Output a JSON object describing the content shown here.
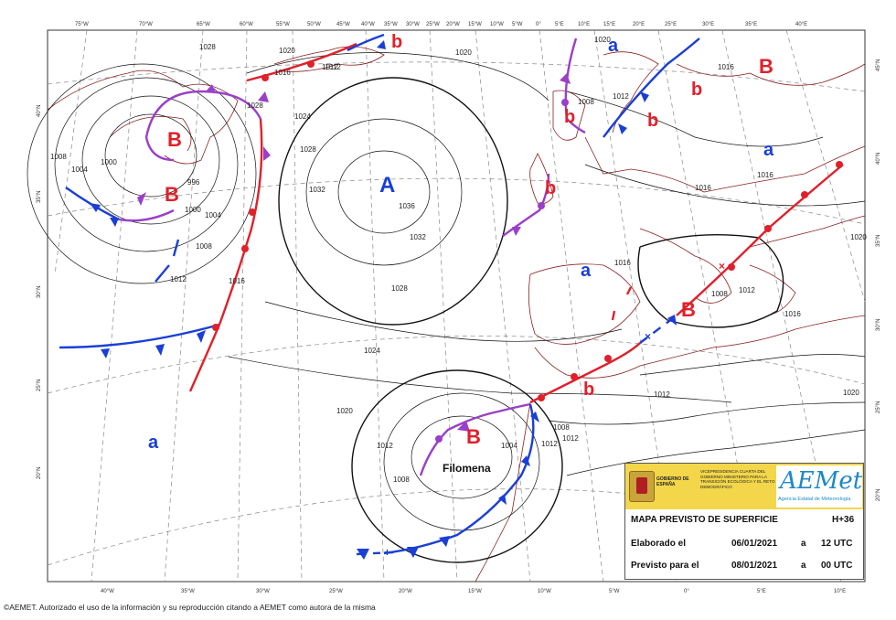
{
  "map": {
    "pressure_centers": [
      {
        "kind": "high",
        "label": "A",
        "name": ""
      },
      {
        "kind": "low",
        "label": "B",
        "name": ""
      },
      {
        "kind": "low",
        "label": "B",
        "name": ""
      },
      {
        "kind": "low",
        "label": "B",
        "name": ""
      },
      {
        "kind": "low",
        "label": "B",
        "name": ""
      },
      {
        "kind": "low",
        "label": "B",
        "name": "Filomena"
      },
      {
        "kind": "low_secondary",
        "label": "b"
      },
      {
        "kind": "low_secondary",
        "label": "b"
      },
      {
        "kind": "low_secondary",
        "label": "b"
      },
      {
        "kind": "low_secondary",
        "label": "b"
      },
      {
        "kind": "low_secondary",
        "label": "b"
      },
      {
        "kind": "low_secondary",
        "label": "b"
      },
      {
        "kind": "high_secondary",
        "label": "a"
      },
      {
        "kind": "high_secondary",
        "label": "a"
      },
      {
        "kind": "high_secondary",
        "label": "a"
      },
      {
        "kind": "high_secondary",
        "label": "a"
      }
    ],
    "isobar_labels": [
      "1028",
      "1028",
      "1020",
      "1016",
      "1012",
      "1024",
      "1028",
      "1032",
      "1036",
      "1032",
      "1028",
      "1024",
      "1020",
      "1016",
      "1012",
      "1008",
      "1004",
      "1000",
      "996",
      "1000",
      "1004",
      "1008",
      "1012",
      "1012",
      "1008",
      "1004",
      "1008",
      "1012",
      "1016",
      "1020",
      "1016",
      "1012",
      "1016",
      "1008",
      "1012",
      "1016",
      "1020",
      "1012",
      "1008",
      "1016",
      "1020",
      "1012",
      "1020"
    ],
    "longitudes_top": [
      "75°W",
      "70°W",
      "65°W",
      "60°W",
      "55°W",
      "50°W",
      "45°W",
      "40°W",
      "35°W",
      "30°W",
      "25°W",
      "20°W",
      "15°W",
      "10°W",
      "5°W",
      "0°",
      "5°E",
      "10°E",
      "15°E",
      "20°E",
      "25°E",
      "30°E",
      "35°E",
      "40°E"
    ],
    "longitudes_bottom": [
      "40°W",
      "35°W",
      "30°W",
      "25°W",
      "20°W",
      "15°W",
      "10°W",
      "5°W",
      "0°",
      "5°E",
      "10°E"
    ],
    "latitudes_left": [
      "40°N",
      "35°N",
      "30°N",
      "25°N",
      "20°N"
    ],
    "latitudes_right": [
      "45°N",
      "40°N",
      "35°N",
      "30°N",
      "25°N",
      "20°N"
    ],
    "colors": {
      "high": "#1a3fd6",
      "low": "#e0202a",
      "cold_front": "#1a3fd6",
      "warm_front": "#e0202a",
      "occluded_front": "#9a3fc8",
      "coast": "#8a2020",
      "isobar": "#111111",
      "graticule": "#777777"
    }
  },
  "legend": {
    "gov_text": "GOBIERNO DE ESPAÑA",
    "vice_text": "VICEPRESIDENCIA CUARTA DEL GOBIERNO MINISTERIO PARA LA TRANSICIÓN ECOLÓGICA Y EL RETO DEMOGRÁFICO",
    "agency_logo": "AEMet",
    "agency_name": "Agencia Estatal de Meteorología",
    "title": "MAPA PREVISTO DE SUPERFICIE",
    "lead": "H+36",
    "elaborated_label": "Elaborado el",
    "elaborated_date": "06/01/2021",
    "elaborated_sep": "a",
    "elaborated_time": "12 UTC",
    "valid_label": "Previsto para el",
    "valid_date": "08/01/2021",
    "valid_sep": "a",
    "valid_time": "00 UTC"
  },
  "footer": "©AEMET. Autorizado el uso de la información y su reproducción citando a AEMET como autora de la misma"
}
